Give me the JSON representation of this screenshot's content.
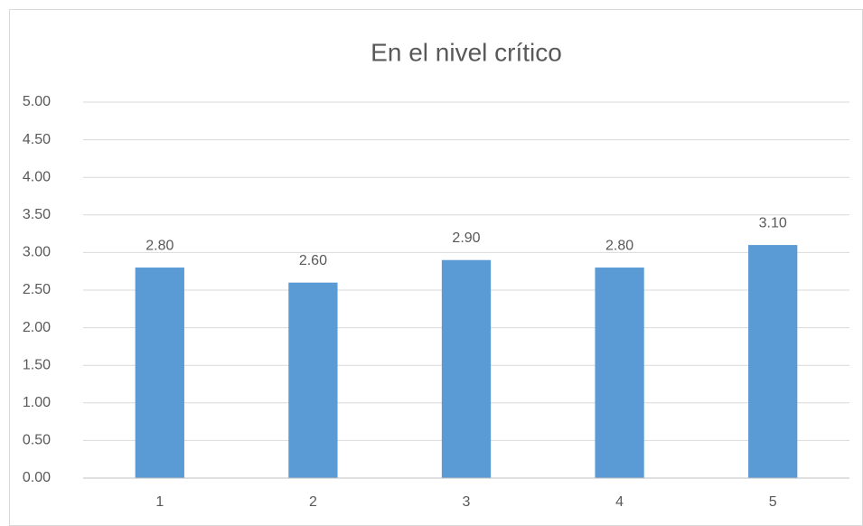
{
  "chart_data": {
    "type": "bar",
    "title": "En el nivel crítico",
    "categories": [
      "1",
      "2",
      "3",
      "4",
      "5"
    ],
    "values": [
      2.8,
      2.6,
      2.9,
      2.8,
      3.1
    ],
    "value_labels": [
      "2.80",
      "2.60",
      "2.90",
      "2.80",
      "3.10"
    ],
    "color": "#5b9bd5",
    "ylim": [
      0,
      5
    ],
    "yticks": [
      {
        "value": 0,
        "label": "0.00"
      },
      {
        "value": 0.5,
        "label": "0.50"
      },
      {
        "value": 1,
        "label": "1.00"
      },
      {
        "value": 1.5,
        "label": "1.50"
      },
      {
        "value": 2,
        "label": "2.00"
      },
      {
        "value": 2.5,
        "label": "2.50"
      },
      {
        "value": 3,
        "label": "3.00"
      },
      {
        "value": 3.5,
        "label": "3.50"
      },
      {
        "value": 4,
        "label": "4.00"
      },
      {
        "value": 4.5,
        "label": "4.50"
      },
      {
        "value": 5,
        "label": "5.00"
      }
    ],
    "grid": true
  }
}
